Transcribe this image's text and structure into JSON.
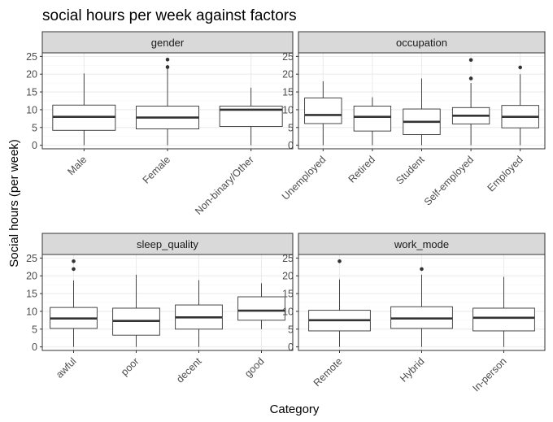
{
  "chart_data": {
    "type": "box",
    "title": "social hours per week against factors",
    "xlabel": "Category",
    "ylabel": "Social hours (per week)",
    "ylim": [
      -1,
      26
    ],
    "yticks": [
      0,
      5,
      10,
      15,
      20,
      25
    ],
    "grid": true,
    "facets": [
      {
        "name": "gender",
        "categories": [
          "Male",
          "Female",
          "Non-binary/Other"
        ],
        "boxes": [
          {
            "category": "Male",
            "min": 0,
            "q1": 4.2,
            "median": 8.0,
            "q3": 11.3,
            "max": 20.2,
            "outliers": []
          },
          {
            "category": "Female",
            "min": 0,
            "q1": 4.6,
            "median": 7.8,
            "q3": 11.0,
            "max": 21.8,
            "outliers": [
              22.0,
              24.1
            ]
          },
          {
            "category": "Non-binary/Other",
            "min": 0,
            "q1": 5.3,
            "median": 10.0,
            "q3": 11.0,
            "max": 16.2,
            "outliers": []
          }
        ]
      },
      {
        "name": "occupation",
        "categories": [
          "Unemployed",
          "Retired",
          "Student",
          "Self-employed",
          "Employed"
        ],
        "boxes": [
          {
            "category": "Unemployed",
            "min": 0,
            "q1": 6.1,
            "median": 8.5,
            "q3": 13.3,
            "max": 18.0,
            "outliers": []
          },
          {
            "category": "Retired",
            "min": 0,
            "q1": 4.0,
            "median": 8.0,
            "q3": 11.0,
            "max": 13.5,
            "outliers": []
          },
          {
            "category": "Student",
            "min": 0,
            "q1": 3.0,
            "median": 6.6,
            "q3": 10.2,
            "max": 18.8,
            "outliers": []
          },
          {
            "category": "Self-employed",
            "min": 0,
            "q1": 6.0,
            "median": 8.3,
            "q3": 10.6,
            "max": 17.5,
            "outliers": [
              18.8,
              24.0
            ]
          },
          {
            "category": "Employed",
            "min": 0,
            "q1": 4.9,
            "median": 8.0,
            "q3": 11.2,
            "max": 20.0,
            "outliers": [
              21.9
            ]
          }
        ]
      },
      {
        "name": "sleep_quality",
        "categories": [
          "awful",
          "poor",
          "decent",
          "good"
        ],
        "boxes": [
          {
            "category": "awful",
            "min": 0,
            "q1": 5.2,
            "median": 8.0,
            "q3": 11.1,
            "max": 18.7,
            "outliers": [
              21.9,
              24.1
            ]
          },
          {
            "category": "poor",
            "min": 0,
            "q1": 3.3,
            "median": 7.3,
            "q3": 10.9,
            "max": 20.3,
            "outliers": []
          },
          {
            "category": "decent",
            "min": 0,
            "q1": 5.0,
            "median": 8.3,
            "q3": 11.8,
            "max": 18.8,
            "outliers": []
          },
          {
            "category": "good",
            "min": 5.0,
            "q1": 7.5,
            "median": 10.2,
            "q3": 14.1,
            "max": 17.9,
            "outliers": []
          }
        ]
      },
      {
        "name": "work_mode",
        "categories": [
          "Remote",
          "Hybrid",
          "In-person"
        ],
        "boxes": [
          {
            "category": "Remote",
            "min": 0,
            "q1": 4.5,
            "median": 7.5,
            "q3": 10.3,
            "max": 19.0,
            "outliers": [
              24.1
            ]
          },
          {
            "category": "Hybrid",
            "min": 0,
            "q1": 5.2,
            "median": 8.0,
            "q3": 11.3,
            "max": 20.3,
            "outliers": [
              21.9
            ]
          },
          {
            "category": "In-person",
            "min": 0,
            "q1": 4.5,
            "median": 8.2,
            "q3": 10.9,
            "max": 19.7,
            "outliers": []
          }
        ]
      }
    ]
  },
  "colors": {
    "panel_border": "#333333",
    "strip_fill": "#d9d9d9",
    "grid_major": "#ebebeb",
    "grid_minor": "#f5f5f5",
    "box_line": "#333333",
    "tick_text": "#4d4d4d"
  }
}
